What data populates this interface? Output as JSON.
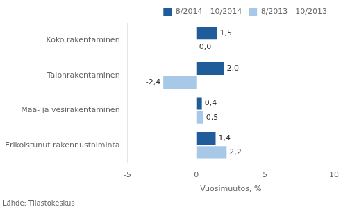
{
  "chart_data": {
    "type": "bar",
    "orientation": "horizontal",
    "categories": [
      "Koko rakentaminen",
      "Talonrakentaminen",
      "Maa- ja vesirakentaminen",
      "Erikoistunut rakennustoiminta"
    ],
    "series": [
      {
        "name": "8/2014 - 10/2014",
        "color": "#1F5C99",
        "values": [
          1.5,
          2.0,
          0.4,
          1.4
        ],
        "value_labels": [
          "1,5",
          "2,0",
          "0,4",
          "1,4"
        ]
      },
      {
        "name": "8/2013 - 10/2013",
        "color": "#A8C8E8",
        "values": [
          0.0,
          -2.4,
          0.5,
          2.2
        ],
        "value_labels": [
          "0,0",
          "-2,4",
          "0,5",
          "2,2"
        ]
      }
    ],
    "xlim": [
      -5,
      10
    ],
    "xticks": [
      -5,
      0,
      5,
      10
    ],
    "xlabel": "Vuosimuutos, %",
    "annotations": [
      "Lähde: Tilastokeskus"
    ],
    "data_labels": true,
    "grid": false,
    "legend": "upper right"
  }
}
